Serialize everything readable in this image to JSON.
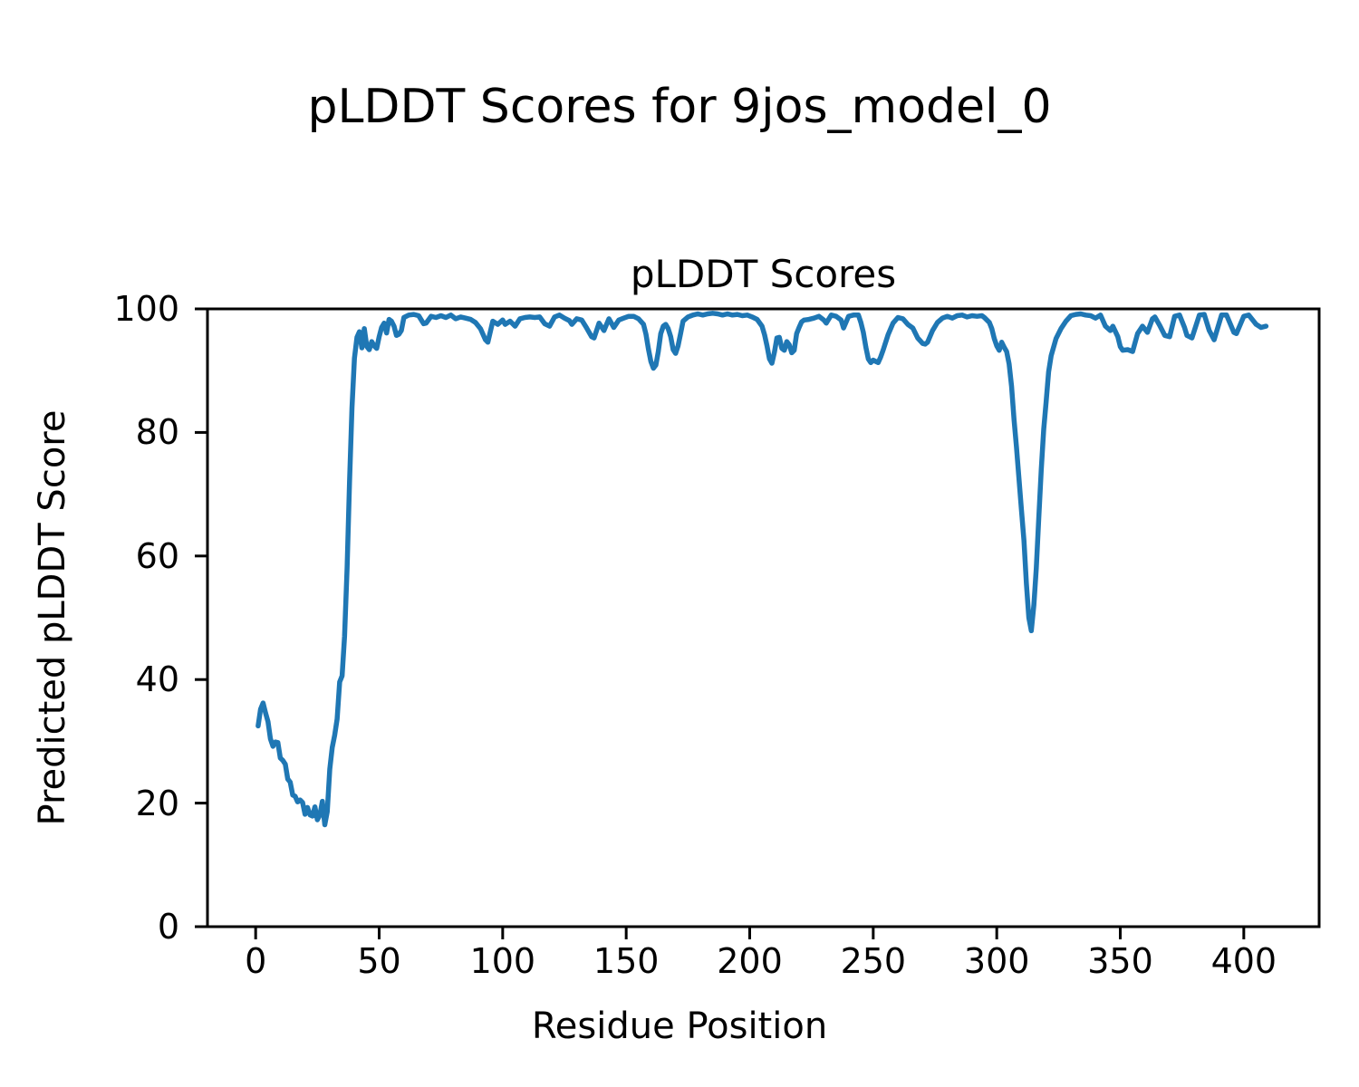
{
  "figure": {
    "title": "pLDDT Scores for 9jos_model_0",
    "background_color": "#ffffff",
    "text_color": "#000000"
  },
  "chart_data": {
    "type": "line",
    "title": "pLDDT Scores",
    "xlabel": "Residue Position",
    "ylabel": "Predicted pLDDT Score",
    "x_ticks": [
      0,
      50,
      100,
      150,
      200,
      250,
      300,
      350,
      400
    ],
    "y_ticks": [
      0,
      20,
      40,
      60,
      80,
      100
    ],
    "xlim": [
      -19.5,
      430.5
    ],
    "ylim": [
      0,
      100
    ],
    "grid": false,
    "legend": null,
    "line_color": "#1f77b4",
    "line_width": 5.5,
    "spine_color": "#000000",
    "series": [
      {
        "name": "pLDDT",
        "points": [
          [
            1,
            32.5
          ],
          [
            2,
            35.2
          ],
          [
            3,
            36.2
          ],
          [
            4,
            34.6
          ],
          [
            5,
            33.2
          ],
          [
            6,
            30.4
          ],
          [
            7,
            29.2
          ],
          [
            8,
            29.9
          ],
          [
            9,
            29.8
          ],
          [
            10,
            27.3
          ],
          [
            11,
            26.9
          ],
          [
            12,
            26.3
          ],
          [
            13,
            23.9
          ],
          [
            14,
            23.4
          ],
          [
            15,
            21.3
          ],
          [
            16,
            21.1
          ],
          [
            17,
            20.2
          ],
          [
            18,
            20.5
          ],
          [
            19,
            20.1
          ],
          [
            20,
            18.2
          ],
          [
            21,
            19.3
          ],
          [
            22,
            18.1
          ],
          [
            23,
            17.9
          ],
          [
            24,
            19.4
          ],
          [
            25,
            17.3
          ],
          [
            26,
            18.1
          ],
          [
            27,
            20.3
          ],
          [
            28,
            16.5
          ],
          [
            29,
            18.6
          ],
          [
            30,
            25.5
          ],
          [
            31,
            29.0
          ],
          [
            32,
            31.0
          ],
          [
            33,
            33.6
          ],
          [
            34,
            39.6
          ],
          [
            35,
            40.6
          ],
          [
            36,
            47.0
          ],
          [
            37,
            58.0
          ],
          [
            38,
            72.0
          ],
          [
            39,
            84.0
          ],
          [
            40,
            92.0
          ],
          [
            41,
            95.4
          ],
          [
            42,
            96.3
          ],
          [
            43,
            93.7
          ],
          [
            44,
            96.8
          ],
          [
            45,
            93.9
          ],
          [
            46,
            93.4
          ],
          [
            47,
            94.7
          ],
          [
            48,
            94.0
          ],
          [
            49,
            93.6
          ],
          [
            50,
            95.5
          ],
          [
            51,
            97.0
          ],
          [
            52,
            97.7
          ],
          [
            53,
            96.1
          ],
          [
            54,
            98.3
          ],
          [
            55,
            98.0
          ],
          [
            56,
            97.2
          ],
          [
            57,
            95.7
          ],
          [
            58,
            95.9
          ],
          [
            59,
            96.5
          ],
          [
            60,
            98.6
          ],
          [
            62,
            99.0
          ],
          [
            64,
            99.1
          ],
          [
            66,
            98.9
          ],
          [
            68,
            97.6
          ],
          [
            69,
            97.7
          ],
          [
            71,
            98.8
          ],
          [
            73,
            98.6
          ],
          [
            75,
            98.9
          ],
          [
            77,
            98.6
          ],
          [
            79,
            99.0
          ],
          [
            81,
            98.4
          ],
          [
            83,
            98.7
          ],
          [
            85,
            98.5
          ],
          [
            87,
            98.3
          ],
          [
            89,
            97.8
          ],
          [
            91,
            96.8
          ],
          [
            93,
            95.0
          ],
          [
            94,
            94.6
          ],
          [
            96,
            98.0
          ],
          [
            98,
            97.5
          ],
          [
            100,
            98.2
          ],
          [
            101,
            97.5
          ],
          [
            103,
            98.0
          ],
          [
            105,
            97.2
          ],
          [
            107,
            98.4
          ],
          [
            109,
            98.6
          ],
          [
            111,
            98.7
          ],
          [
            113,
            98.6
          ],
          [
            115,
            98.7
          ],
          [
            117,
            97.6
          ],
          [
            119,
            97.2
          ],
          [
            121,
            98.7
          ],
          [
            123,
            99.0
          ],
          [
            125,
            98.5
          ],
          [
            127,
            98.1
          ],
          [
            128,
            97.5
          ],
          [
            130,
            98.4
          ],
          [
            132,
            98.2
          ],
          [
            134,
            96.9
          ],
          [
            136,
            95.5
          ],
          [
            137,
            95.3
          ],
          [
            139,
            97.7
          ],
          [
            141,
            96.5
          ],
          [
            143,
            98.4
          ],
          [
            145,
            97.0
          ],
          [
            147,
            98.2
          ],
          [
            149,
            98.5
          ],
          [
            151,
            98.8
          ],
          [
            153,
            98.8
          ],
          [
            155,
            98.4
          ],
          [
            157,
            97.5
          ],
          [
            158,
            95.9
          ],
          [
            159,
            93.5
          ],
          [
            160,
            91.5
          ],
          [
            161,
            90.4
          ],
          [
            162,
            90.9
          ],
          [
            163,
            93.1
          ],
          [
            164,
            96.0
          ],
          [
            165,
            97.2
          ],
          [
            166,
            97.5
          ],
          [
            167,
            96.8
          ],
          [
            168,
            95.5
          ],
          [
            169,
            93.4
          ],
          [
            170,
            92.8
          ],
          [
            171,
            94.0
          ],
          [
            172,
            96.0
          ],
          [
            173,
            98.0
          ],
          [
            175,
            98.7
          ],
          [
            177,
            99.0
          ],
          [
            179,
            99.2
          ],
          [
            181,
            99.0
          ],
          [
            183,
            99.2
          ],
          [
            185,
            99.3
          ],
          [
            187,
            99.2
          ],
          [
            189,
            99.0
          ],
          [
            191,
            99.2
          ],
          [
            193,
            99.0
          ],
          [
            195,
            99.1
          ],
          [
            197,
            98.9
          ],
          [
            199,
            99.0
          ],
          [
            201,
            98.7
          ],
          [
            203,
            98.3
          ],
          [
            205,
            97.2
          ],
          [
            206,
            95.8
          ],
          [
            207,
            94.0
          ],
          [
            208,
            91.9
          ],
          [
            209,
            91.2
          ],
          [
            210,
            93.0
          ],
          [
            211,
            95.3
          ],
          [
            212,
            95.4
          ],
          [
            213,
            93.6
          ],
          [
            214,
            93.3
          ],
          [
            215,
            94.7
          ],
          [
            216,
            94.2
          ],
          [
            217,
            92.9
          ],
          [
            218,
            93.3
          ],
          [
            219,
            96.0
          ],
          [
            220,
            97.0
          ],
          [
            221,
            97.9
          ],
          [
            222,
            98.2
          ],
          [
            224,
            98.3
          ],
          [
            226,
            98.5
          ],
          [
            228,
            98.8
          ],
          [
            230,
            98.2
          ],
          [
            231,
            97.7
          ],
          [
            233,
            99.0
          ],
          [
            235,
            98.8
          ],
          [
            237,
            98.2
          ],
          [
            238,
            96.9
          ],
          [
            240,
            98.8
          ],
          [
            242,
            99.0
          ],
          [
            244,
            99.0
          ],
          [
            245,
            97.8
          ],
          [
            246,
            96.2
          ],
          [
            247,
            93.8
          ],
          [
            248,
            91.9
          ],
          [
            249,
            91.3
          ],
          [
            250,
            91.7
          ],
          [
            251,
            91.5
          ],
          [
            252,
            91.3
          ],
          [
            253,
            92.2
          ],
          [
            254,
            93.3
          ],
          [
            256,
            95.8
          ],
          [
            258,
            97.7
          ],
          [
            260,
            98.6
          ],
          [
            262,
            98.4
          ],
          [
            264,
            97.5
          ],
          [
            266,
            96.9
          ],
          [
            268,
            95.3
          ],
          [
            270,
            94.4
          ],
          [
            271,
            94.3
          ],
          [
            272,
            94.6
          ],
          [
            274,
            96.5
          ],
          [
            276,
            97.8
          ],
          [
            278,
            98.5
          ],
          [
            280,
            98.8
          ],
          [
            282,
            98.5
          ],
          [
            284,
            98.9
          ],
          [
            286,
            99.0
          ],
          [
            288,
            98.7
          ],
          [
            290,
            98.9
          ],
          [
            292,
            98.8
          ],
          [
            294,
            98.9
          ],
          [
            295,
            98.6
          ],
          [
            297,
            97.8
          ],
          [
            298,
            96.8
          ],
          [
            299,
            95.2
          ],
          [
            300,
            94.0
          ],
          [
            301,
            93.3
          ],
          [
            302,
            94.6
          ],
          [
            303,
            93.8
          ],
          [
            304,
            93.1
          ],
          [
            305,
            91.1
          ],
          [
            306,
            87.5
          ],
          [
            307,
            82.0
          ],
          [
            308,
            77.5
          ],
          [
            309,
            72.5
          ],
          [
            310,
            67.5
          ],
          [
            311,
            62.5
          ],
          [
            312,
            55.5
          ],
          [
            313,
            50.0
          ],
          [
            314,
            47.9
          ],
          [
            315,
            52.0
          ],
          [
            316,
            58.0
          ],
          [
            317,
            66.0
          ],
          [
            318,
            74.0
          ],
          [
            319,
            80.5
          ],
          [
            320,
            85.0
          ],
          [
            321,
            89.8
          ],
          [
            322,
            92.4
          ],
          [
            323,
            93.8
          ],
          [
            324,
            95.2
          ],
          [
            326,
            96.8
          ],
          [
            328,
            98.0
          ],
          [
            330,
            98.9
          ],
          [
            332,
            99.1
          ],
          [
            334,
            99.2
          ],
          [
            336,
            99.0
          ],
          [
            338,
            98.9
          ],
          [
            340,
            98.5
          ],
          [
            342,
            99.0
          ],
          [
            344,
            97.2
          ],
          [
            346,
            96.5
          ],
          [
            347,
            97.2
          ],
          [
            349,
            95.5
          ],
          [
            350,
            93.9
          ],
          [
            351,
            93.3
          ],
          [
            353,
            93.4
          ],
          [
            355,
            93.1
          ],
          [
            357,
            96.0
          ],
          [
            359,
            97.2
          ],
          [
            361,
            96.2
          ],
          [
            363,
            98.4
          ],
          [
            364,
            98.7
          ],
          [
            366,
            97.3
          ],
          [
            368,
            95.7
          ],
          [
            370,
            95.5
          ],
          [
            372,
            98.8
          ],
          [
            374,
            99.0
          ],
          [
            376,
            97.0
          ],
          [
            377,
            95.7
          ],
          [
            379,
            95.3
          ],
          [
            382,
            99.0
          ],
          [
            384,
            99.1
          ],
          [
            386,
            96.5
          ],
          [
            388,
            95.0
          ],
          [
            391,
            99.0
          ],
          [
            393,
            99.0
          ],
          [
            396,
            96.2
          ],
          [
            397,
            96.0
          ],
          [
            400,
            98.8
          ],
          [
            402,
            99.0
          ],
          [
            405,
            97.5
          ],
          [
            407,
            97.0
          ],
          [
            409,
            97.2
          ]
        ]
      }
    ]
  }
}
